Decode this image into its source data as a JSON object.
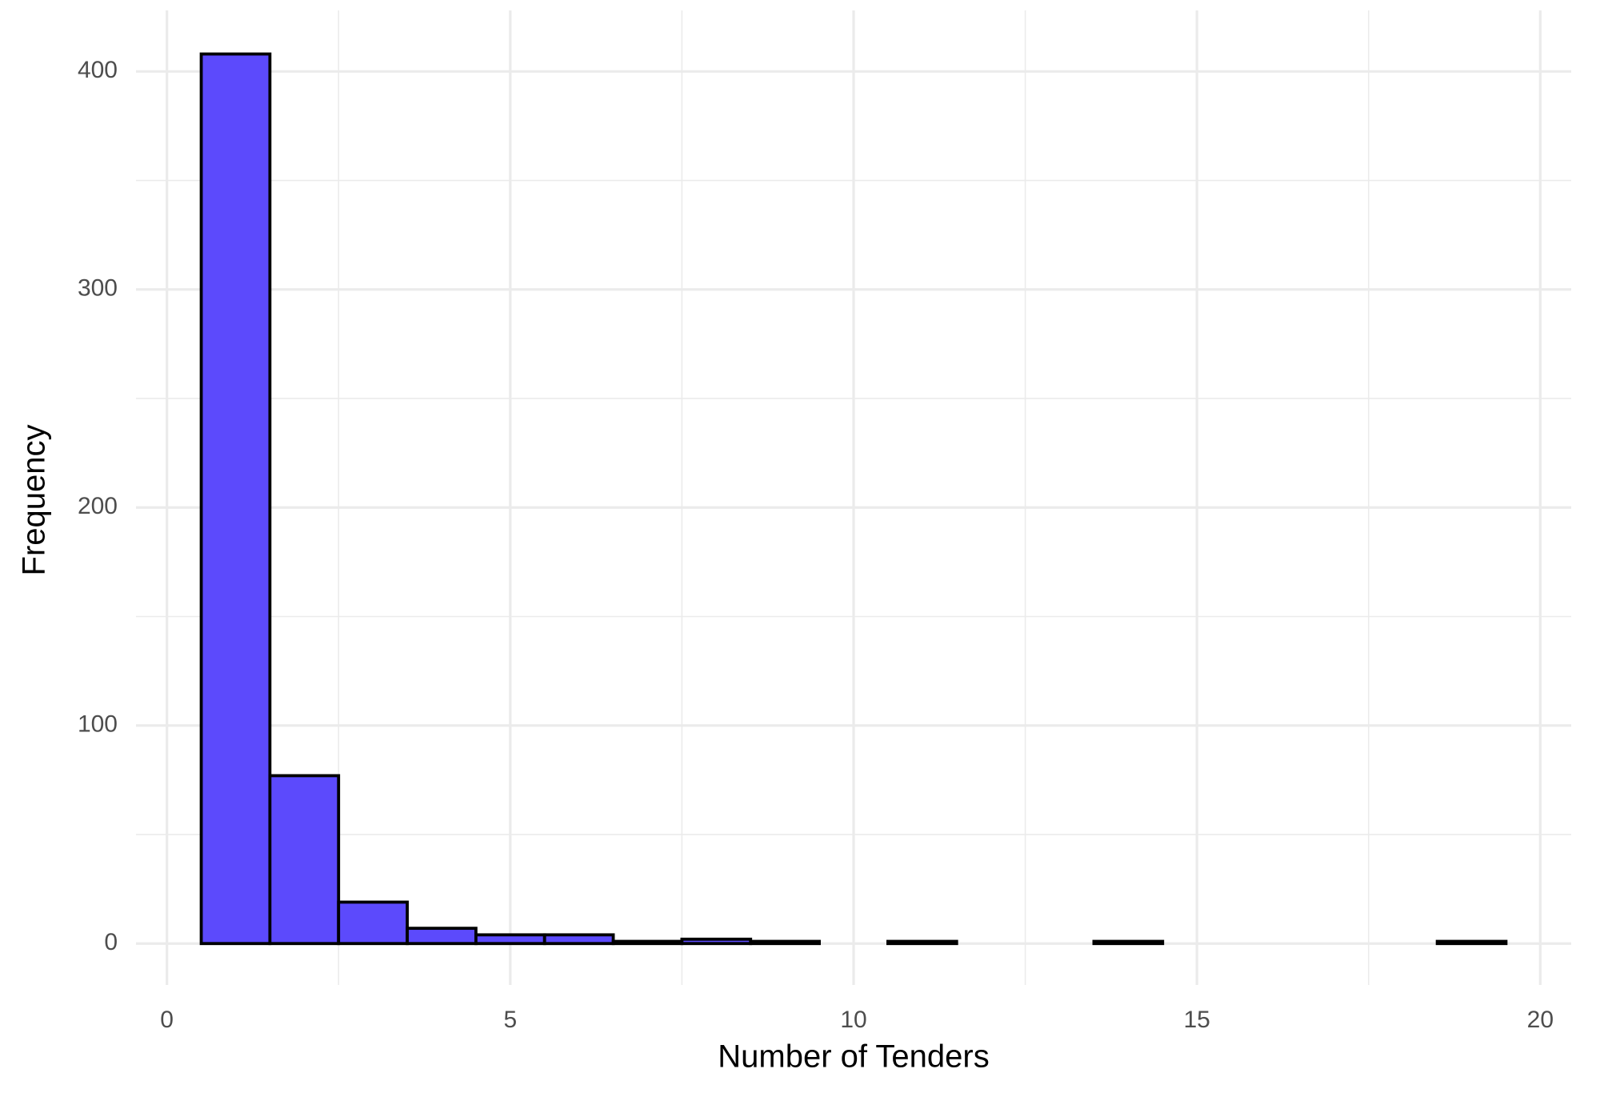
{
  "chart_data": {
    "type": "histogram",
    "x_label": "Number of Tenders",
    "y_label": "Frequency",
    "bins": [
      0.5,
      1.5,
      2.5,
      3.5,
      4.5,
      5.5,
      6.5,
      7.5,
      8.5,
      9.5,
      10.5,
      11.5,
      12.5,
      13.5,
      14.5,
      15.5,
      16.5,
      17.5,
      18.5,
      19.5
    ],
    "counts": [
      408,
      77,
      19,
      7,
      4,
      4,
      1,
      2,
      1,
      0,
      1,
      0,
      0,
      1,
      0,
      0,
      0,
      0,
      1
    ],
    "color": "#5c4afc",
    "edge_color": "#000000",
    "xlim": [
      -0.45,
      20.45
    ],
    "xticks": [
      0,
      5,
      10,
      15,
      20
    ],
    "xminor": [
      2.5,
      7.5,
      12.5,
      17.5
    ],
    "ylim": [
      -19,
      428
    ],
    "yticks": [
      0,
      100,
      200,
      300,
      400
    ],
    "yminor": [
      50,
      150,
      250,
      350
    ],
    "grid": true
  }
}
